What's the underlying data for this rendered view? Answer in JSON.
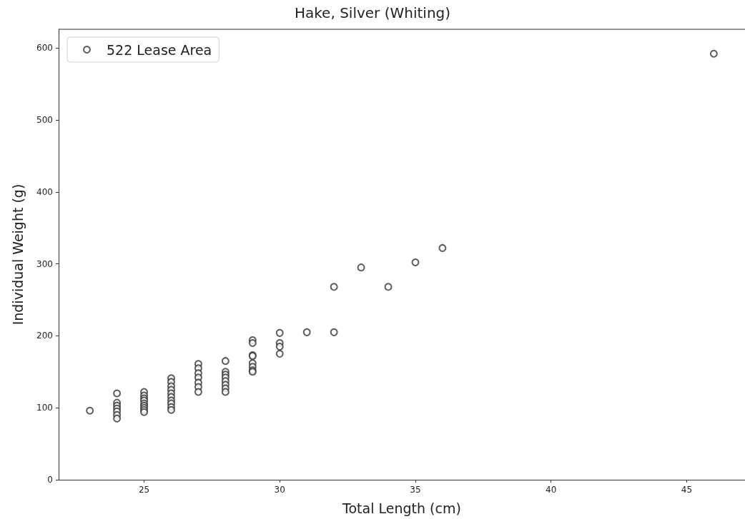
{
  "chart_data": {
    "type": "scatter",
    "title": "Hake, Silver (Whiting)",
    "xlabel": "Total Length (cm)",
    "ylabel": "Individual Weight (g)",
    "xlim": [
      21.85,
      47.15
    ],
    "xticks": [
      25,
      30,
      35,
      40,
      45
    ],
    "ylim": [
      0,
      626
    ],
    "yticks": [
      0,
      100,
      200,
      300,
      400,
      500,
      600
    ],
    "grid": false,
    "legend": "top left",
    "marker": "circle",
    "series": [
      {
        "name": "522 Lease Area",
        "color": "#333333",
        "x": [
          23,
          24,
          24,
          24,
          24,
          24,
          24,
          24,
          25,
          25,
          25,
          25,
          25,
          25,
          25,
          25,
          25,
          26,
          26,
          26,
          26,
          26,
          26,
          26,
          26,
          26,
          26,
          27,
          27,
          27,
          27,
          27,
          27,
          27,
          28,
          28,
          28,
          28,
          28,
          28,
          28,
          28,
          29,
          29,
          29,
          29,
          29,
          29,
          29,
          29,
          30,
          30,
          30,
          30,
          31,
          32,
          32,
          33,
          34,
          35,
          36,
          46
        ],
        "values": [
          96,
          120,
          107,
          103,
          99,
          95,
          90,
          85,
          122,
          117,
          113,
          110,
          106,
          103,
          100,
          97,
          94,
          141,
          136,
          130,
          125,
          120,
          115,
          110,
          106,
          101,
          97,
          161,
          155,
          148,
          142,
          135,
          129,
          122,
          165,
          150,
          146,
          142,
          137,
          132,
          127,
          122,
          194,
          190,
          173,
          172,
          162,
          157,
          152,
          150,
          204,
          190,
          185,
          175,
          205,
          205,
          268,
          295,
          268,
          302,
          322,
          592
        ]
      }
    ]
  }
}
